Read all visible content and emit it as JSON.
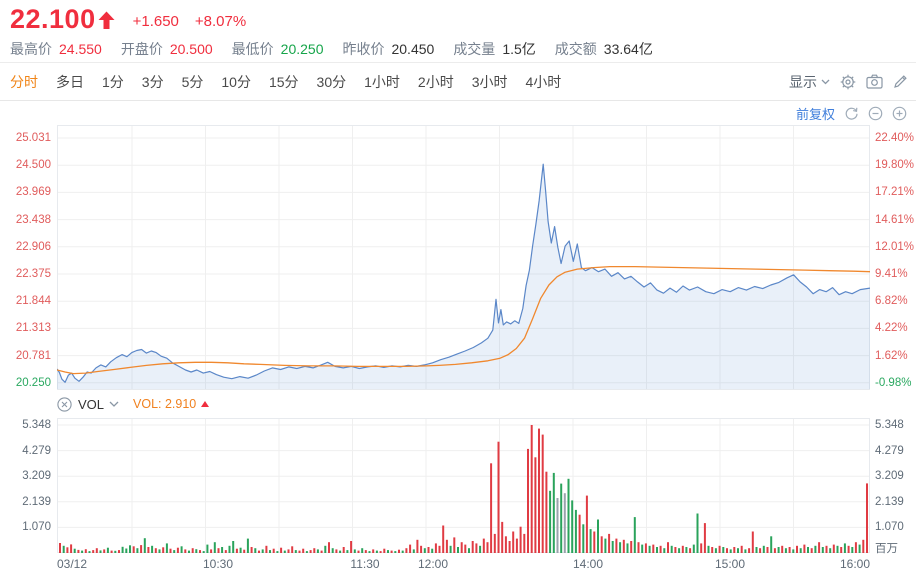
{
  "header": {
    "price": "22.100",
    "change": "+1.650",
    "change_pct": "+8.07%",
    "stats": [
      {
        "key": "high",
        "label": "最高价",
        "value": "24.550",
        "color": "red"
      },
      {
        "key": "open",
        "label": "开盘价",
        "value": "20.500",
        "color": "red"
      },
      {
        "key": "low",
        "label": "最低价",
        "value": "20.250",
        "color": "green"
      },
      {
        "key": "prev-close",
        "label": "昨收价",
        "value": "20.450",
        "color": "neutral"
      },
      {
        "key": "volume",
        "label": "成交量",
        "value": "1.5亿",
        "color": "neutral"
      },
      {
        "key": "turnover",
        "label": "成交额",
        "value": "33.64亿",
        "color": "neutral"
      }
    ]
  },
  "toolbar": {
    "display_label": "显示",
    "tabs": [
      {
        "key": "intraday",
        "label": "分时",
        "active": true
      },
      {
        "key": "multi-day",
        "label": "多日",
        "active": false
      },
      {
        "key": "1m",
        "label": "1分",
        "active": false
      },
      {
        "key": "3m",
        "label": "3分",
        "active": false
      },
      {
        "key": "5m",
        "label": "5分",
        "active": false
      },
      {
        "key": "10m",
        "label": "10分",
        "active": false
      },
      {
        "key": "15m",
        "label": "15分",
        "active": false
      },
      {
        "key": "30m",
        "label": "30分",
        "active": false
      },
      {
        "key": "1h",
        "label": "1小时",
        "active": false
      },
      {
        "key": "2h",
        "label": "2小时",
        "active": false
      },
      {
        "key": "3h",
        "label": "3小时",
        "active": false
      },
      {
        "key": "4h",
        "label": "4小时",
        "active": false
      }
    ]
  },
  "chart_controls": {
    "adjust_label": "前复权"
  },
  "vol_header": {
    "name": "VOL",
    "value_label": "VOL: 2.910"
  },
  "axis": {
    "price_ticks": [
      "25.031",
      "24.500",
      "23.969",
      "23.438",
      "22.906",
      "22.375",
      "21.844",
      "21.313",
      "20.781",
      "20.250"
    ],
    "price_tick_colors": [
      "red",
      "red",
      "red",
      "red",
      "red",
      "red",
      "red",
      "red",
      "red",
      "green"
    ],
    "pct_ticks": [
      "22.40%",
      "19.80%",
      "17.21%",
      "14.61%",
      "12.01%",
      "9.41%",
      "6.82%",
      "4.22%",
      "1.62%",
      "-0.98%"
    ],
    "pct_tick_colors": [
      "red",
      "red",
      "red",
      "red",
      "red",
      "red",
      "red",
      "red",
      "red",
      "green"
    ],
    "vol_ticks": [
      "5.348",
      "4.279",
      "3.209",
      "2.139",
      "1.070"
    ],
    "vol_unit": "百万",
    "time_ticks": [
      {
        "label": "03/12",
        "pos": 0.0,
        "align": "left"
      },
      {
        "label": "10:30",
        "pos": 0.198,
        "align": "center"
      },
      {
        "label": "11:30",
        "pos": 0.379,
        "align": "center"
      },
      {
        "label": "12:00",
        "pos": 0.463,
        "align": "center"
      },
      {
        "label": "14:00",
        "pos": 0.653,
        "align": "center"
      },
      {
        "label": "15:00",
        "pos": 0.828,
        "align": "center"
      },
      {
        "label": "16:00",
        "pos": 1.0,
        "align": "right"
      }
    ],
    "v_gridlines": [
      0.0923,
      0.1827,
      0.2731,
      0.3635,
      0.4539,
      0.5443,
      0.6347,
      0.7251,
      0.8155,
      0.9059
    ]
  },
  "chart_data": {
    "type": "line",
    "title": "intraday price with average line and volume",
    "price_axis": {
      "min": 20.25,
      "max": 25.031,
      "step": 0.53125
    },
    "volume_axis": {
      "min": 0,
      "max": 5.348,
      "unit": "百万"
    },
    "time_range": [
      "09:30",
      "16:00"
    ],
    "price_line": [
      [
        0.0,
        20.52
      ],
      [
        0.003,
        20.45
      ],
      [
        0.006,
        20.32
      ],
      [
        0.01,
        20.26
      ],
      [
        0.014,
        20.4
      ],
      [
        0.018,
        20.44
      ],
      [
        0.022,
        20.34
      ],
      [
        0.027,
        20.28
      ],
      [
        0.032,
        20.36
      ],
      [
        0.037,
        20.46
      ],
      [
        0.042,
        20.44
      ],
      [
        0.048,
        20.54
      ],
      [
        0.054,
        20.6
      ],
      [
        0.06,
        20.56
      ],
      [
        0.066,
        20.66
      ],
      [
        0.073,
        20.74
      ],
      [
        0.08,
        20.8
      ],
      [
        0.086,
        20.76
      ],
      [
        0.092,
        20.84
      ],
      [
        0.098,
        20.88
      ],
      [
        0.104,
        20.9
      ],
      [
        0.11,
        20.83
      ],
      [
        0.116,
        20.87
      ],
      [
        0.122,
        20.84
      ],
      [
        0.128,
        20.77
      ],
      [
        0.135,
        20.73
      ],
      [
        0.142,
        20.64
      ],
      [
        0.15,
        20.57
      ],
      [
        0.158,
        20.5
      ],
      [
        0.165,
        20.46
      ],
      [
        0.172,
        20.5
      ],
      [
        0.18,
        20.44
      ],
      [
        0.188,
        20.47
      ],
      [
        0.196,
        20.41
      ],
      [
        0.205,
        20.36
      ],
      [
        0.215,
        20.33
      ],
      [
        0.225,
        20.37
      ],
      [
        0.235,
        20.34
      ],
      [
        0.245,
        20.4
      ],
      [
        0.255,
        20.48
      ],
      [
        0.265,
        20.54
      ],
      [
        0.275,
        20.51
      ],
      [
        0.285,
        20.56
      ],
      [
        0.295,
        20.53
      ],
      [
        0.305,
        20.57
      ],
      [
        0.315,
        20.54
      ],
      [
        0.325,
        20.6
      ],
      [
        0.333,
        20.65
      ],
      [
        0.342,
        20.57
      ],
      [
        0.352,
        20.54
      ],
      [
        0.362,
        20.57
      ],
      [
        0.372,
        20.53
      ],
      [
        0.382,
        20.56
      ],
      [
        0.392,
        20.58
      ],
      [
        0.402,
        20.55
      ],
      [
        0.412,
        20.58
      ],
      [
        0.422,
        20.56
      ],
      [
        0.432,
        20.59
      ],
      [
        0.442,
        20.57
      ],
      [
        0.452,
        20.6
      ],
      [
        0.462,
        20.64
      ],
      [
        0.472,
        20.7
      ],
      [
        0.482,
        20.75
      ],
      [
        0.492,
        20.81
      ],
      [
        0.502,
        20.87
      ],
      [
        0.512,
        20.94
      ],
      [
        0.522,
        21.03
      ],
      [
        0.53,
        21.12
      ],
      [
        0.536,
        21.28
      ],
      [
        0.54,
        21.88
      ],
      [
        0.543,
        21.42
      ],
      [
        0.546,
        21.68
      ],
      [
        0.549,
        21.38
      ],
      [
        0.553,
        21.44
      ],
      [
        0.558,
        21.4
      ],
      [
        0.563,
        21.46
      ],
      [
        0.568,
        21.41
      ],
      [
        0.573,
        21.7
      ],
      [
        0.577,
        22.15
      ],
      [
        0.581,
        22.45
      ],
      [
        0.585,
        22.92
      ],
      [
        0.589,
        23.35
      ],
      [
        0.593,
        23.8
      ],
      [
        0.598,
        24.52
      ],
      [
        0.601,
        24.0
      ],
      [
        0.604,
        23.4
      ],
      [
        0.608,
        22.98
      ],
      [
        0.612,
        23.3
      ],
      [
        0.616,
        22.9
      ],
      [
        0.62,
        22.58
      ],
      [
        0.625,
        22.92
      ],
      [
        0.63,
        23.02
      ],
      [
        0.635,
        22.62
      ],
      [
        0.64,
        22.96
      ],
      [
        0.645,
        22.5
      ],
      [
        0.65,
        22.44
      ],
      [
        0.658,
        22.5
      ],
      [
        0.666,
        22.42
      ],
      [
        0.674,
        22.47
      ],
      [
        0.682,
        22.33
      ],
      [
        0.69,
        22.4
      ],
      [
        0.698,
        22.28
      ],
      [
        0.706,
        22.33
      ],
      [
        0.714,
        22.22
      ],
      [
        0.722,
        22.12
      ],
      [
        0.73,
        22.2
      ],
      [
        0.738,
        22.06
      ],
      [
        0.746,
        22.0
      ],
      [
        0.754,
        22.1
      ],
      [
        0.762,
        22.02
      ],
      [
        0.77,
        22.14
      ],
      [
        0.778,
        22.06
      ],
      [
        0.788,
        22.12
      ],
      [
        0.798,
        22.03
      ],
      [
        0.808,
        21.99
      ],
      [
        0.818,
        22.07
      ],
      [
        0.828,
        22.03
      ],
      [
        0.838,
        22.11
      ],
      [
        0.848,
        22.06
      ],
      [
        0.858,
        22.13
      ],
      [
        0.868,
        22.09
      ],
      [
        0.878,
        22.16
      ],
      [
        0.888,
        22.21
      ],
      [
        0.898,
        22.3
      ],
      [
        0.906,
        22.36
      ],
      [
        0.914,
        22.22
      ],
      [
        0.922,
        22.12
      ],
      [
        0.93,
        21.99
      ],
      [
        0.938,
        22.07
      ],
      [
        0.946,
        22.03
      ],
      [
        0.954,
        22.11
      ],
      [
        0.962,
        21.97
      ],
      [
        0.97,
        22.03
      ],
      [
        0.978,
        21.99
      ],
      [
        0.988,
        22.07
      ],
      [
        1.0,
        22.1
      ]
    ],
    "avg_line": [
      [
        0.0,
        20.5
      ],
      [
        0.01,
        20.46
      ],
      [
        0.02,
        20.43
      ],
      [
        0.035,
        20.44
      ],
      [
        0.05,
        20.47
      ],
      [
        0.07,
        20.51
      ],
      [
        0.09,
        20.55
      ],
      [
        0.11,
        20.59
      ],
      [
        0.13,
        20.62
      ],
      [
        0.15,
        20.64
      ],
      [
        0.17,
        20.65
      ],
      [
        0.19,
        20.65
      ],
      [
        0.21,
        20.64
      ],
      [
        0.23,
        20.62
      ],
      [
        0.25,
        20.61
      ],
      [
        0.28,
        20.59
      ],
      [
        0.31,
        20.58
      ],
      [
        0.34,
        20.58
      ],
      [
        0.37,
        20.57
      ],
      [
        0.4,
        20.57
      ],
      [
        0.43,
        20.57
      ],
      [
        0.455,
        20.58
      ],
      [
        0.47,
        20.59
      ],
      [
        0.49,
        20.61
      ],
      [
        0.51,
        20.64
      ],
      [
        0.53,
        20.68
      ],
      [
        0.545,
        20.73
      ],
      [
        0.555,
        20.8
      ],
      [
        0.565,
        20.92
      ],
      [
        0.575,
        21.12
      ],
      [
        0.585,
        21.5
      ],
      [
        0.595,
        21.9
      ],
      [
        0.605,
        22.16
      ],
      [
        0.615,
        22.32
      ],
      [
        0.625,
        22.41
      ],
      [
        0.64,
        22.47
      ],
      [
        0.66,
        22.5
      ],
      [
        0.68,
        22.52
      ],
      [
        0.71,
        22.52
      ],
      [
        0.74,
        22.51
      ],
      [
        0.77,
        22.5
      ],
      [
        0.8,
        22.49
      ],
      [
        0.83,
        22.48
      ],
      [
        0.86,
        22.47
      ],
      [
        0.89,
        22.46
      ],
      [
        0.92,
        22.45
      ],
      [
        0.95,
        22.44
      ],
      [
        0.98,
        22.43
      ],
      [
        1.0,
        22.42
      ]
    ],
    "volume_millions_signed": [
      0.42,
      -0.3,
      0.24,
      0.36,
      -0.18,
      0.13,
      -0.1,
      0.16,
      -0.08,
      0.12,
      0.2,
      -0.11,
      0.15,
      -0.22,
      0.1,
      -0.09,
      0.12,
      -0.26,
      -0.19,
      -0.32,
      0.28,
      -0.2,
      0.33,
      -0.62,
      0.25,
      -0.3,
      0.2,
      -0.15,
      0.24,
      -0.4,
      0.18,
      -0.12,
      0.22,
      -0.28,
      0.15,
      -0.1,
      0.2,
      -0.16,
      0.12,
      -0.08,
      -0.35,
      0.15,
      -0.45,
      0.2,
      -0.25,
      0.12,
      -0.3,
      -0.5,
      0.18,
      -0.22,
      0.14,
      -0.6,
      0.25,
      -0.2,
      0.1,
      -0.15,
      0.3,
      -0.12,
      0.18,
      -0.08,
      0.22,
      -0.1,
      0.15,
      0.28,
      -0.12,
      0.1,
      0.18,
      -0.08,
      0.12,
      0.2,
      -0.15,
      0.1,
      -0.3,
      0.45,
      -0.2,
      0.15,
      -0.1,
      0.25,
      -0.12,
      0.5,
      -0.15,
      0.1,
      -0.2,
      0.12,
      -0.08,
      0.15,
      -0.1,
      0.08,
      0.18,
      -0.12,
      0.1,
      -0.08,
      0.14,
      -0.1,
      0.2,
      0.35,
      -0.15,
      0.55,
      0.3,
      -0.2,
      0.25,
      -0.18,
      0.4,
      0.3,
      1.15,
      0.55,
      -0.3,
      0.65,
      -0.25,
      0.45,
      0.35,
      -0.2,
      0.5,
      0.4,
      -0.3,
      0.6,
      0.45,
      3.75,
      0.8,
      4.65,
      1.3,
      0.7,
      0.5,
      0.9,
      0.6,
      1.1,
      0.8,
      4.35,
      5.35,
      4.0,
      5.2,
      4.95,
      3.4,
      -2.6,
      -3.35,
      2.3,
      -2.9,
      2.5,
      -3.1,
      -2.2,
      -1.8,
      1.6,
      -1.2,
      2.4,
      -1.0,
      0.9,
      -1.4,
      0.7,
      -0.6,
      0.8,
      -0.5,
      0.6,
      -0.45,
      0.55,
      -0.4,
      0.5,
      -1.5,
      0.45,
      -0.35,
      0.4,
      -0.3,
      0.35,
      -0.25,
      0.3,
      -0.2,
      0.45,
      -0.3,
      0.25,
      -0.2,
      0.3,
      -0.25,
      0.2,
      -0.35,
      -1.65,
      0.4,
      1.25,
      -0.3,
      0.25,
      -0.2,
      0.3,
      -0.25,
      0.2,
      -0.15,
      0.25,
      -0.2,
      0.3,
      -0.15,
      0.2,
      0.9,
      -0.25,
      0.2,
      -0.3,
      0.25,
      -0.7,
      0.2,
      -0.25,
      0.3,
      -0.2,
      0.25,
      -0.15,
      0.3,
      -0.2,
      0.35,
      -0.25,
      0.2,
      -0.3,
      0.45,
      -0.25,
      0.3,
      -0.2,
      0.35,
      -0.3,
      0.25,
      -0.4,
      0.3,
      -0.25,
      0.45,
      -0.35,
      0.55,
      2.91
    ],
    "volume_gray_indices": [
      135,
      137
    ]
  },
  "colors": {
    "red": "#f02e3e",
    "green": "#16a54a",
    "axis_red": "#e05c5c",
    "axis_green": "#2aa860",
    "tab_orange": "#f08518",
    "vol_orange": "#f0811f",
    "link_blue": "#3f7edb",
    "blue_line": "#5b87c8",
    "blue_fill": "rgba(110,155,212,0.15)",
    "avg_line": "#f0882e",
    "bar_red": "#e03b43",
    "bar_green": "#2aa35b",
    "bar_gray": "#9aa3ac",
    "grid": "#efefef",
    "plot_border": "#e7eaee",
    "icon_gray": "#8a97a5"
  }
}
